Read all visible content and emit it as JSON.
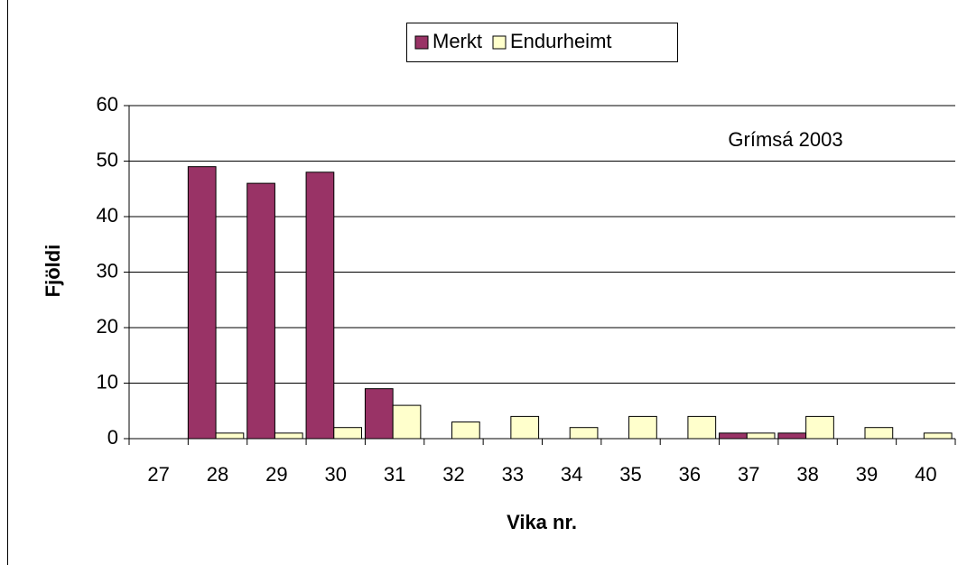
{
  "chart_data": {
    "type": "bar",
    "categories": [
      "27",
      "28",
      "29",
      "30",
      "31",
      "32",
      "33",
      "34",
      "35",
      "36",
      "37",
      "38",
      "39",
      "40"
    ],
    "series": [
      {
        "name": "Merkt",
        "color": "#993366",
        "values": [
          0,
          49,
          46,
          48,
          9,
          0,
          0,
          0,
          0,
          0,
          1,
          1,
          0,
          0
        ]
      },
      {
        "name": "Endurheimt",
        "color": "#ffffcc",
        "values": [
          0,
          1,
          1,
          2,
          6,
          3,
          4,
          2,
          4,
          4,
          1,
          4,
          2,
          1
        ]
      }
    ],
    "xlabel": "Vika nr.",
    "ylabel": "Fjöldi",
    "annotation": "Grímsá 2003",
    "ylim": [
      0,
      60
    ],
    "yticks": [
      0,
      10,
      20,
      30,
      40,
      50,
      60
    ],
    "grid": true,
    "legend": "top"
  }
}
